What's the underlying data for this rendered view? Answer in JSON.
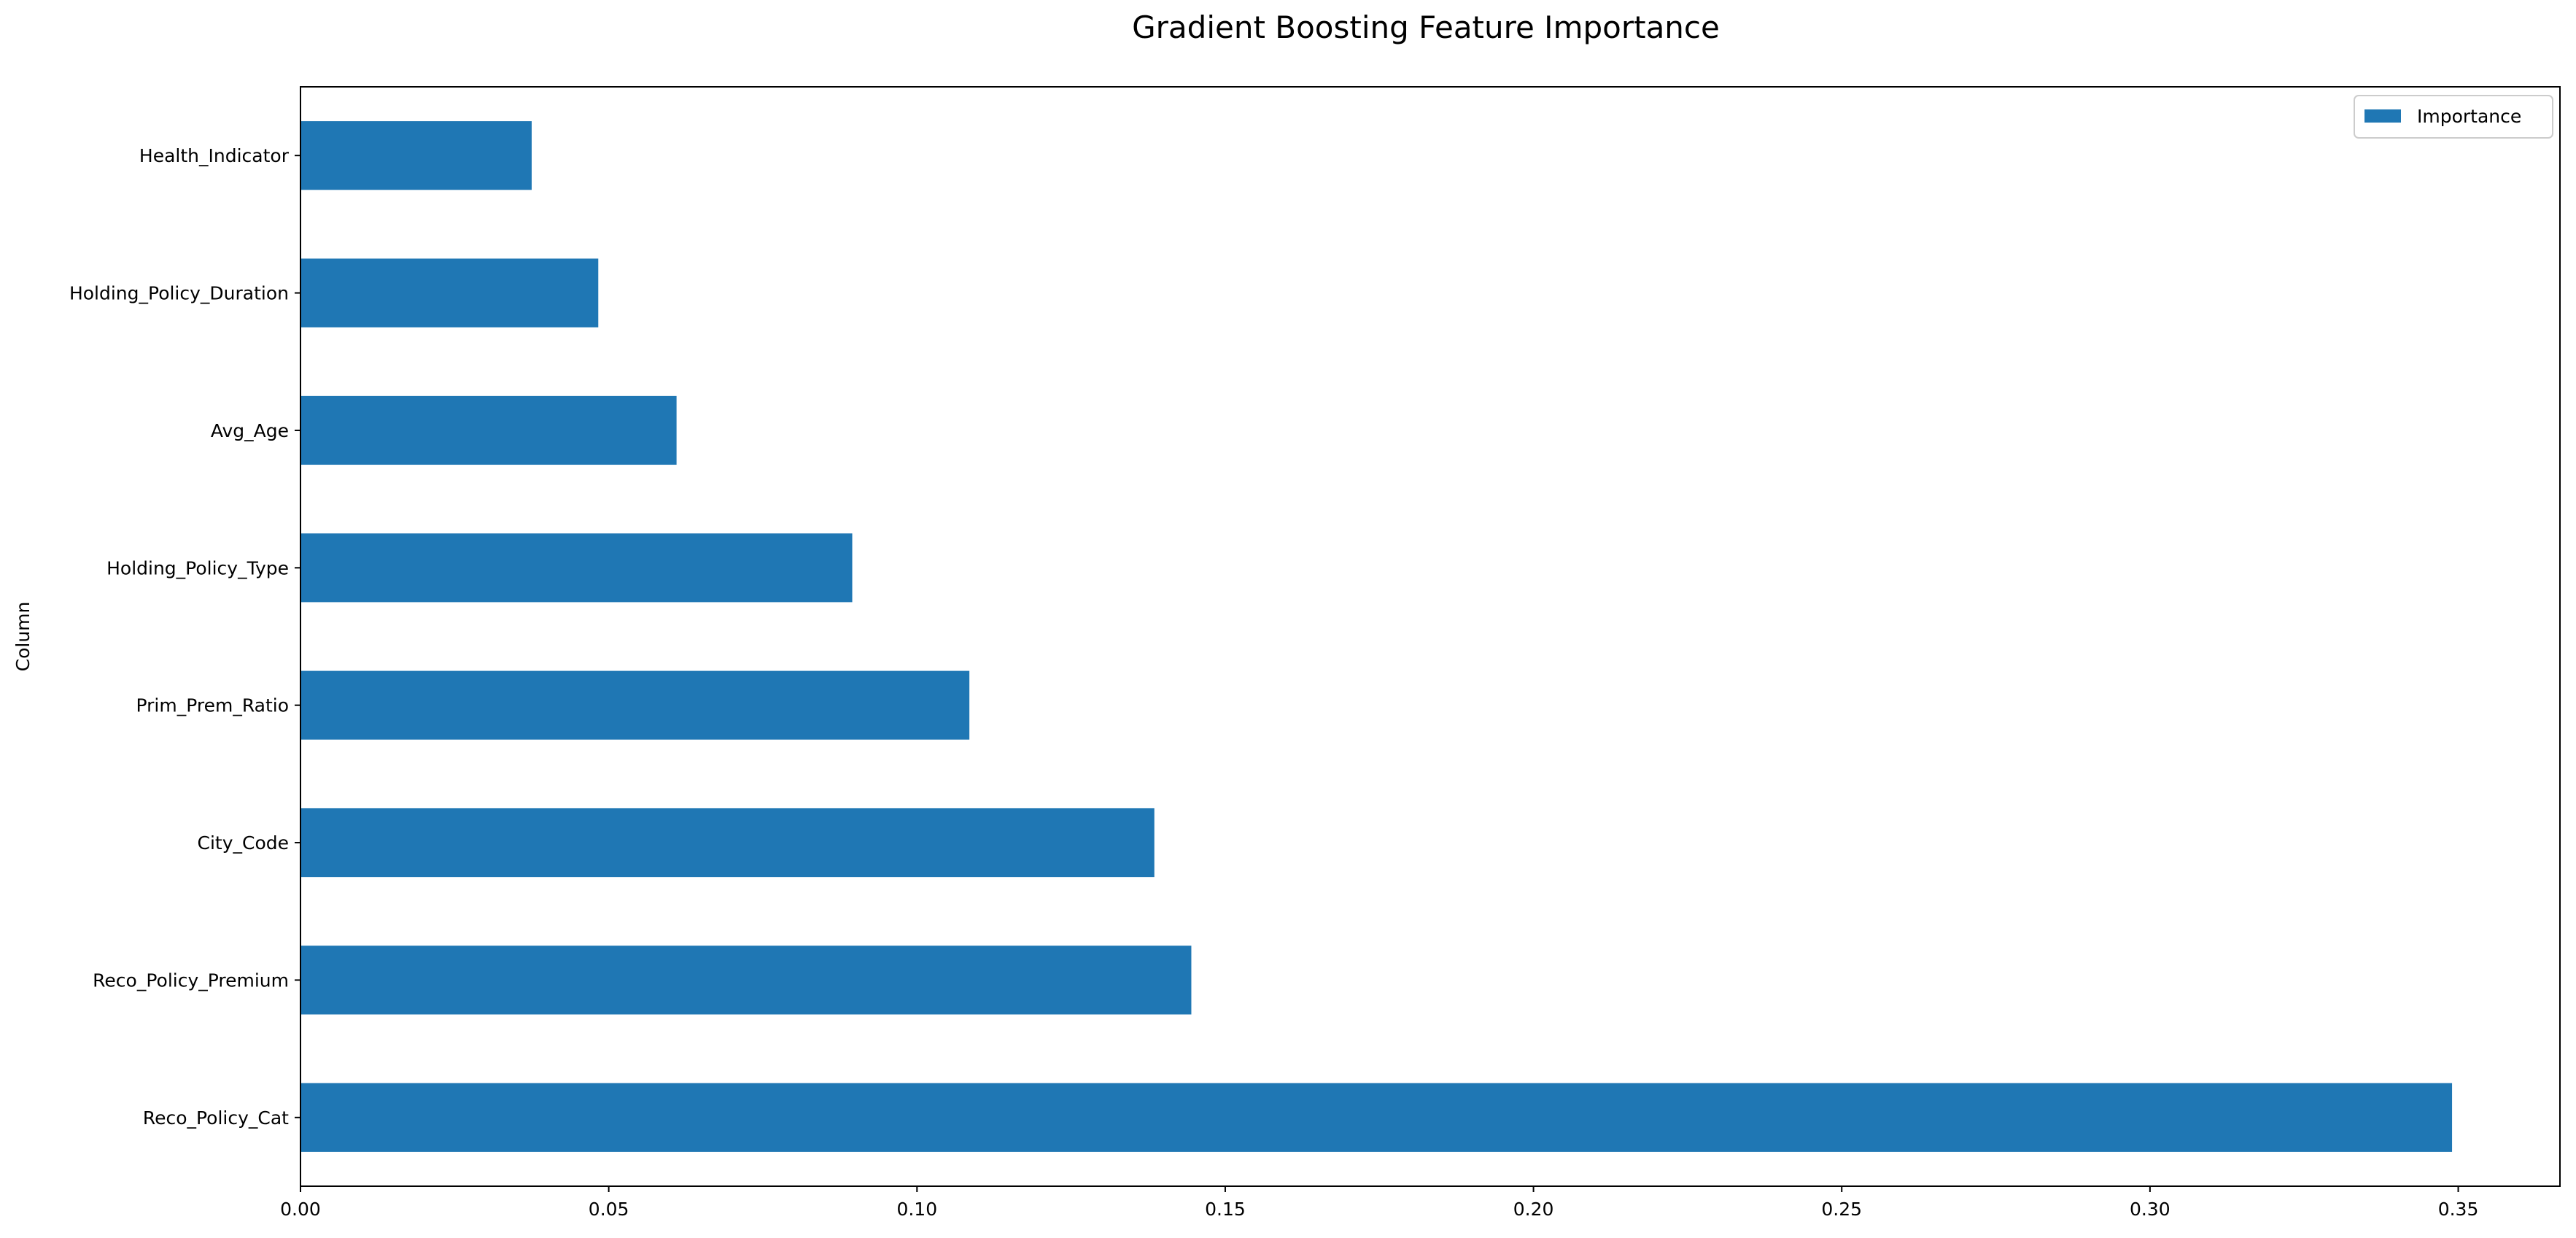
{
  "chart_data": {
    "type": "bar",
    "orientation": "horizontal",
    "title": "Gradient Boosting Feature Importance",
    "xlabel": "",
    "ylabel": "Column",
    "categories": [
      "Reco_Policy_Cat",
      "Reco_Policy_Premium",
      "City_Code",
      "Prim_Prem_Ratio",
      "Holding_Policy_Type",
      "Avg_Age",
      "Holding_Policy_Duration",
      "Health_Indicator"
    ],
    "series": [
      {
        "name": "Importance",
        "values": [
          0.349,
          0.1445,
          0.1385,
          0.1085,
          0.0895,
          0.061,
          0.0483,
          0.0375
        ]
      }
    ],
    "xlim": [
      0.0,
      0.3665
    ],
    "xticks": [
      0.0,
      0.05,
      0.1,
      0.15,
      0.2,
      0.25,
      0.3,
      0.35
    ],
    "xtick_labels": [
      "0.00",
      "0.05",
      "0.10",
      "0.15",
      "0.20",
      "0.25",
      "0.30",
      "0.35"
    ],
    "grid": false,
    "legend_position": "top-right",
    "colors": {
      "bar": "#1f77b4",
      "axis": "#000000",
      "background": "#ffffff"
    }
  }
}
